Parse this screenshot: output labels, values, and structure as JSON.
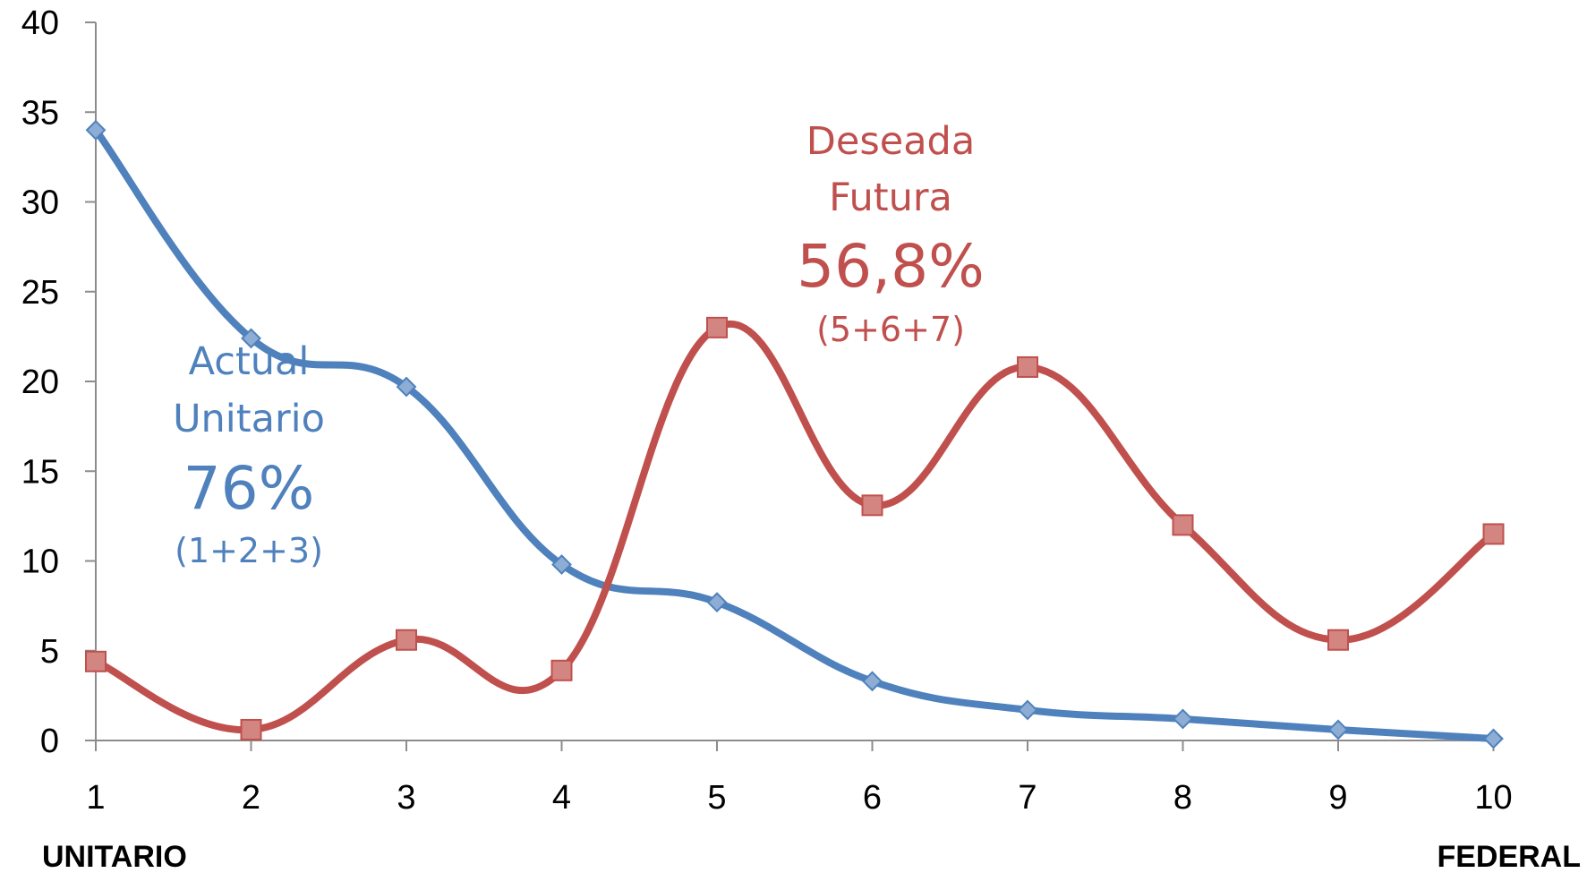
{
  "chart_data": {
    "type": "line",
    "title": "",
    "xlabel": "",
    "ylabel": "",
    "categories": [
      "1",
      "2",
      "3",
      "4",
      "5",
      "6",
      "7",
      "8",
      "9",
      "10"
    ],
    "x": [
      1,
      2,
      3,
      4,
      5,
      6,
      7,
      8,
      9,
      10
    ],
    "ylim": [
      0,
      40
    ],
    "yticks": [
      0,
      5,
      10,
      15,
      20,
      25,
      30,
      35,
      40
    ],
    "smooth": true,
    "grid": false,
    "legend": "none",
    "series": [
      {
        "key": "actual",
        "color": "#4f81bd",
        "marker": "diamond",
        "values": [
          34,
          22.4,
          19.7,
          9.8,
          7.7,
          3.3,
          1.7,
          1.2,
          0.6,
          0.1
        ]
      },
      {
        "key": "deseada",
        "color": "#c0504d",
        "marker": "square",
        "values": [
          4.4,
          0.6,
          5.6,
          3.9,
          23,
          13.1,
          20.8,
          12.0,
          5.6,
          11.5
        ]
      }
    ],
    "end_labels": {
      "left": "UNITARIO",
      "right": "FEDERAL"
    },
    "annotations": {
      "actual": {
        "line1": "Actual",
        "line2": "Unitario",
        "pct": "76%",
        "note": "(1+2+3)",
        "color": "#4f81bd"
      },
      "deseada": {
        "line1": "Deseada",
        "line2": "Futura",
        "pct": "56,8%",
        "note": "(5+6+7)",
        "color": "#c0504d"
      }
    }
  }
}
